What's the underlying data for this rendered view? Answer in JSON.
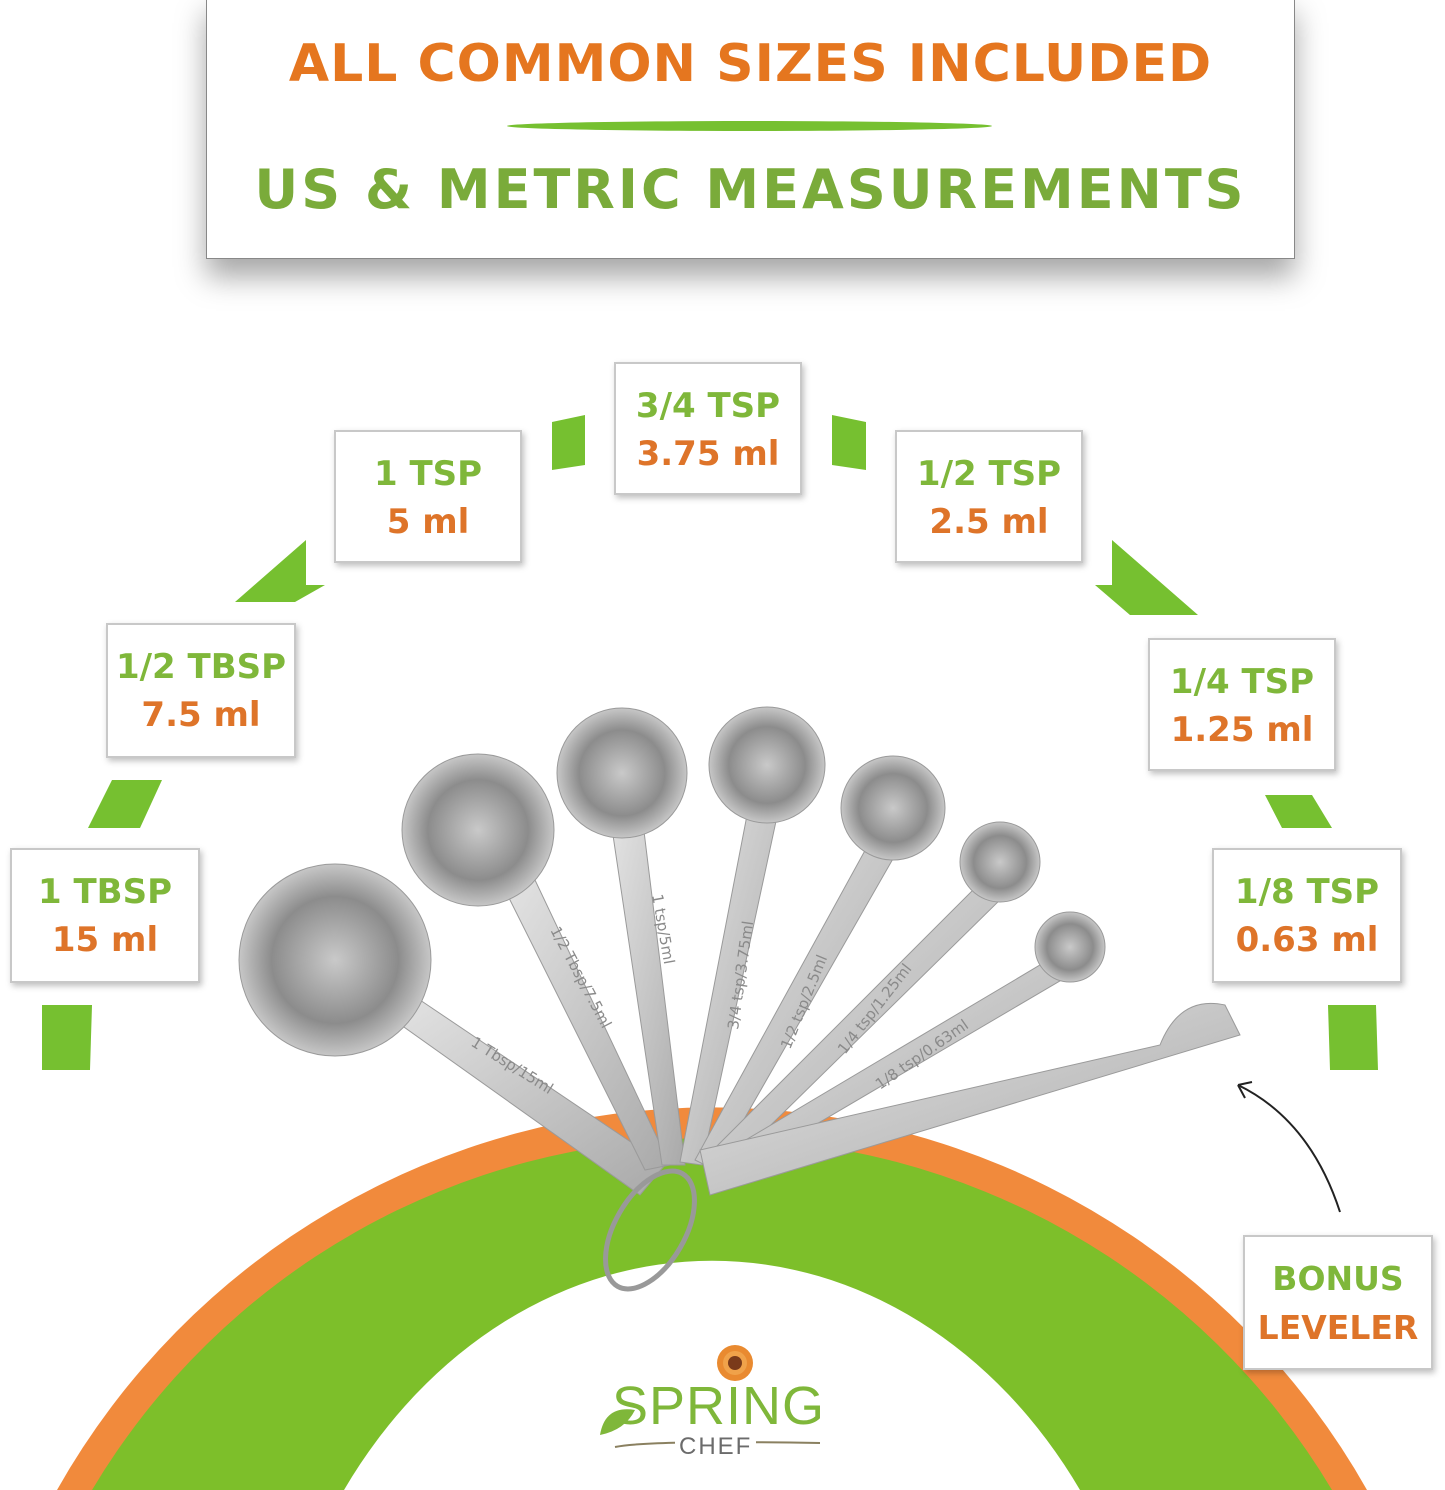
{
  "banner": {
    "headline": "ALL COMMON SIZES INCLUDED",
    "subheadline": "US & METRIC MEASUREMENTS"
  },
  "sizes": [
    {
      "us": "1 TBSP",
      "metric": "15 ml",
      "engraving": "1 Tbsp/15ml"
    },
    {
      "us": "1/2 TBSP",
      "metric": "7.5 ml",
      "engraving": "1/2 Tbsp/7.5ml"
    },
    {
      "us": "1 TSP",
      "metric": "5 ml",
      "engraving": "1 tsp/5ml"
    },
    {
      "us": "3/4 TSP",
      "metric": "3.75 ml",
      "engraving": "3/4 tsp/3.75ml"
    },
    {
      "us": "1/2 TSP",
      "metric": "2.5 ml",
      "engraving": "1/2 tsp/2.5ml"
    },
    {
      "us": "1/4 TSP",
      "metric": "1.25 ml",
      "engraving": "1/4 tsp/1.25ml"
    },
    {
      "us": "1/8 TSP",
      "metric": "0.63 ml",
      "engraving": "1/8 tsp/0.63ml"
    }
  ],
  "bonus": {
    "line1": "BONUS",
    "line2": "LEVELER"
  },
  "logo": {
    "brand": "SPRING",
    "sub": "CHEF"
  },
  "colors": {
    "orange": "#de7429",
    "green": "#7fb73a",
    "arc_green": "#7dbf2a",
    "arc_orange": "#f18a3c"
  }
}
